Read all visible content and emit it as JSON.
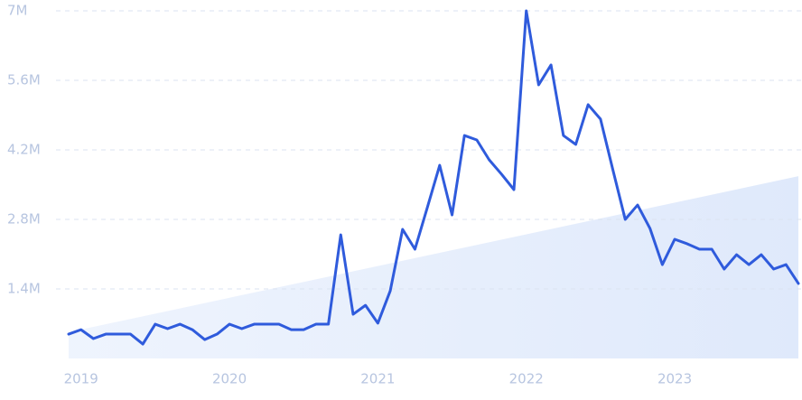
{
  "chart_data": {
    "type": "line",
    "categories": [
      null,
      "2019",
      null,
      null,
      null,
      null,
      null,
      null,
      null,
      null,
      null,
      null,
      null,
      "2020",
      null,
      null,
      null,
      null,
      null,
      null,
      null,
      null,
      null,
      null,
      null,
      "2021",
      null,
      null,
      null,
      null,
      null,
      null,
      null,
      null,
      null,
      null,
      null,
      "2022",
      null,
      null,
      null,
      null,
      null,
      null,
      null,
      null,
      null,
      null,
      null,
      "2023",
      null,
      null,
      null,
      null,
      null,
      null,
      null,
      null,
      null,
      null
    ],
    "series": [
      {
        "color": "#2f5bdc",
        "values": [
          490000,
          580000,
          400000,
          490000,
          490000,
          490000,
          290000,
          690000,
          600000,
          690000,
          580000,
          380000,
          490000,
          690000,
          600000,
          690000,
          690000,
          690000,
          580000,
          580000,
          690000,
          690000,
          2490000,
          890000,
          1070000,
          710000,
          1360000,
          2600000,
          2200000,
          3040000,
          3890000,
          2890000,
          4490000,
          4400000,
          4000000,
          3710000,
          3400000,
          7000000,
          5510000,
          5910000,
          4490000,
          4310000,
          5110000,
          4820000,
          3800000,
          2800000,
          3090000,
          2620000,
          1890000,
          2400000,
          2310000,
          2200000,
          2200000,
          1800000,
          2090000,
          1890000,
          2090000,
          1800000,
          1890000,
          1510000
        ]
      }
    ],
    "trend_values": [
      530000,
      3670000
    ],
    "ylim": [
      0,
      7000000
    ],
    "yticks": [
      {
        "value": 1400000,
        "label": "1.4M"
      },
      {
        "value": 2800000,
        "label": "2.8M"
      },
      {
        "value": 4200000,
        "label": "4.2M"
      },
      {
        "value": 5600000,
        "label": "5.6M"
      },
      {
        "value": 7000000,
        "label": "7M"
      }
    ],
    "grid": true
  }
}
